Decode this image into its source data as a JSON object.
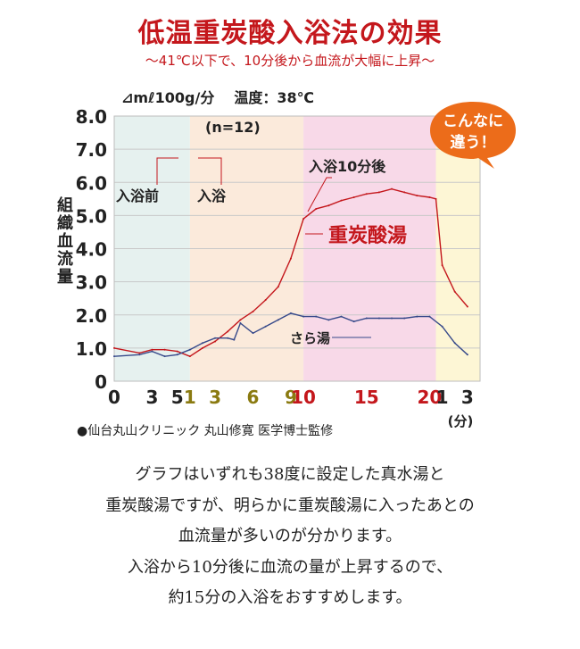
{
  "title": "低温重炭酸入浴法の効果",
  "subtitle": "〜41℃以下で、10分後から血流が大幅に上昇〜",
  "unit_label": "⊿mℓ100g/分",
  "temperature_label": "温度：38℃",
  "n_label": "(n=12)",
  "y_axis_label": "組織血流量",
  "x_unit": "(分)",
  "source": "●仙台丸山クリニック 丸山修寛 医学博士監修",
  "bubble": "こんなに\n違う！",
  "caption_lines": [
    "グラフはいずれも38度に設定した真水湯と",
    "重炭酸湯ですが、明らかに重炭酸湯に入ったあとの",
    "血流量が多いのが分かります。",
    "入浴から10分後に血流の量が上昇するので、",
    "約15分の入浴をおすすめします。"
  ],
  "chart_data": {
    "type": "line",
    "ylim": [
      0,
      8
    ],
    "y_ticks": [
      "0",
      "1.0",
      "2.0",
      "3.0",
      "4.0",
      "5.0",
      "6.0",
      "7.0",
      "8.0"
    ],
    "x_ticks": [
      {
        "label": "0",
        "t": 0,
        "color": "#222222"
      },
      {
        "label": "3",
        "t": 3,
        "color": "#222222"
      },
      {
        "label": "5",
        "t": 5,
        "color": "#222222"
      },
      {
        "label": "1",
        "t": 6,
        "color": "#8a7a10"
      },
      {
        "label": "3",
        "t": 8,
        "color": "#8a7a10"
      },
      {
        "label": "6",
        "t": 11,
        "color": "#8a7a10"
      },
      {
        "label": "9",
        "t": 14,
        "color": "#8a7a10"
      },
      {
        "label": "10",
        "t": 15,
        "color": "#c4171c"
      },
      {
        "label": "15",
        "t": 20,
        "color": "#c4171c"
      },
      {
        "label": "20",
        "t": 25,
        "color": "#c4171c"
      },
      {
        "label": "1",
        "t": 26,
        "color": "#222222"
      },
      {
        "label": "3",
        "t": 28,
        "color": "#222222"
      }
    ],
    "phases": [
      {
        "label": "入浴前",
        "from": 0,
        "to": 6,
        "color": "#e6f1ef"
      },
      {
        "label": "入浴",
        "from": 6,
        "to": 15,
        "color": "#fbeadb"
      },
      {
        "label": "入浴10分後",
        "from": 15,
        "to": 25.5,
        "color": "#f8d9e8"
      },
      {
        "label": "",
        "from": 25.5,
        "to": 29,
        "color": "#fdf6d5"
      }
    ],
    "series": [
      {
        "name": "重炭酸湯",
        "color": "#c4171c",
        "x": [
          0,
          2,
          3,
          4,
          5,
          6,
          7,
          8,
          9,
          10,
          11,
          12,
          13,
          14,
          15,
          16,
          17,
          18,
          19,
          20,
          21,
          22,
          23,
          24,
          25,
          25.5,
          26,
          27,
          28
        ],
        "y": [
          1.0,
          0.85,
          0.95,
          0.95,
          0.9,
          0.75,
          1.0,
          1.2,
          1.5,
          1.85,
          2.1,
          2.45,
          2.85,
          3.7,
          4.9,
          5.2,
          5.3,
          5.45,
          5.55,
          5.65,
          5.7,
          5.8,
          5.7,
          5.6,
          5.55,
          5.5,
          3.5,
          2.7,
          2.25
        ]
      },
      {
        "name": "さら湯",
        "color": "#36498a",
        "x": [
          0,
          2,
          3,
          4,
          5,
          6,
          7,
          8,
          9,
          9.5,
          10,
          11,
          12,
          13,
          14,
          15,
          16,
          17,
          18,
          19,
          20,
          21,
          22,
          23,
          24,
          25,
          26,
          27,
          28
        ],
        "y": [
          0.75,
          0.8,
          0.9,
          0.75,
          0.8,
          0.95,
          1.15,
          1.3,
          1.3,
          1.25,
          1.75,
          1.45,
          1.65,
          1.85,
          2.05,
          1.95,
          1.95,
          1.85,
          1.95,
          1.8,
          1.9,
          1.9,
          1.9,
          1.9,
          1.95,
          1.95,
          1.65,
          1.15,
          0.8
        ]
      }
    ]
  }
}
